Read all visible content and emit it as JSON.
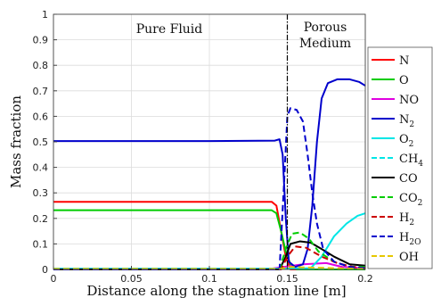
{
  "chart_data": {
    "type": "line",
    "xlabel": "Distance along the stagnation line [m]",
    "ylabel": "Mass fraction",
    "xlim": [
      0,
      0.2
    ],
    "ylim": [
      0,
      1
    ],
    "x_ticks": [
      "0",
      "0.05",
      "0.1",
      "0.15",
      "0.2"
    ],
    "y_ticks": [
      "0",
      "0.1",
      "0.2",
      "0.3",
      "0.4",
      "0.5",
      "0.6",
      "0.7",
      "0.8",
      "0.9",
      "1"
    ],
    "grid": true,
    "legend_position": "right",
    "divider_x": 0.15,
    "annotations": [
      {
        "text": "Pure Fluid",
        "region": "left"
      },
      {
        "text": "Porous",
        "region": "right"
      },
      {
        "text": "Medium",
        "region": "right"
      }
    ],
    "series": [
      {
        "name": "N",
        "sub": "",
        "color": "#ff0000",
        "dash": "solid",
        "points": [
          [
            0,
            0.265
          ],
          [
            0.1,
            0.265
          ],
          [
            0.14,
            0.265
          ],
          [
            0.143,
            0.25
          ],
          [
            0.146,
            0.15
          ],
          [
            0.149,
            0.05
          ],
          [
            0.152,
            0.0
          ],
          [
            0.2,
            0.0
          ]
        ]
      },
      {
        "name": "O",
        "sub": "",
        "color": "#00cc00",
        "dash": "solid",
        "points": [
          [
            0,
            0.232
          ],
          [
            0.1,
            0.232
          ],
          [
            0.14,
            0.232
          ],
          [
            0.143,
            0.22
          ],
          [
            0.146,
            0.15
          ],
          [
            0.149,
            0.07
          ],
          [
            0.152,
            0.02
          ],
          [
            0.156,
            0.0
          ],
          [
            0.2,
            0.0
          ]
        ]
      },
      {
        "name": "NO",
        "sub": "",
        "color": "#e000e0",
        "dash": "solid",
        "points": [
          [
            0,
            0.003
          ],
          [
            0.14,
            0.003
          ],
          [
            0.148,
            0.01
          ],
          [
            0.16,
            0.02
          ],
          [
            0.175,
            0.025
          ],
          [
            0.185,
            0.01
          ],
          [
            0.2,
            0.005
          ]
        ]
      },
      {
        "name": "N",
        "sub": "2",
        "color": "#0000cc",
        "dash": "solid",
        "points": [
          [
            0,
            0.503
          ],
          [
            0.1,
            0.503
          ],
          [
            0.142,
            0.505
          ],
          [
            0.145,
            0.51
          ],
          [
            0.147,
            0.45
          ],
          [
            0.149,
            0.2
          ],
          [
            0.151,
            0.03
          ],
          [
            0.155,
            0.01
          ],
          [
            0.16,
            0.02
          ],
          [
            0.163,
            0.08
          ],
          [
            0.166,
            0.25
          ],
          [
            0.169,
            0.5
          ],
          [
            0.172,
            0.67
          ],
          [
            0.176,
            0.73
          ],
          [
            0.182,
            0.745
          ],
          [
            0.19,
            0.745
          ],
          [
            0.196,
            0.735
          ],
          [
            0.2,
            0.72
          ]
        ]
      },
      {
        "name": "O",
        "sub": "2",
        "color": "#00e6e6",
        "dash": "solid",
        "points": [
          [
            0,
            0.003
          ],
          [
            0.14,
            0.003
          ],
          [
            0.15,
            0.003
          ],
          [
            0.165,
            0.005
          ],
          [
            0.172,
            0.05
          ],
          [
            0.18,
            0.13
          ],
          [
            0.188,
            0.18
          ],
          [
            0.195,
            0.21
          ],
          [
            0.2,
            0.22
          ]
        ]
      },
      {
        "name": "CH",
        "sub": "4",
        "color": "#00e6e6",
        "dash": "dashed",
        "points": [
          [
            0,
            0.003
          ],
          [
            0.15,
            0.003
          ],
          [
            0.2,
            0.002
          ]
        ]
      },
      {
        "name": "CO",
        "sub": "",
        "color": "#000000",
        "dash": "solid",
        "points": [
          [
            0,
            0.0
          ],
          [
            0.145,
            0.0
          ],
          [
            0.149,
            0.05
          ],
          [
            0.152,
            0.1
          ],
          [
            0.158,
            0.11
          ],
          [
            0.165,
            0.105
          ],
          [
            0.172,
            0.08
          ],
          [
            0.18,
            0.05
          ],
          [
            0.19,
            0.02
          ],
          [
            0.2,
            0.015
          ]
        ]
      },
      {
        "name": "CO",
        "sub": "2",
        "color": "#00cc00",
        "dash": "dashed",
        "points": [
          [
            0,
            0.0
          ],
          [
            0.145,
            0.0
          ],
          [
            0.149,
            0.08
          ],
          [
            0.153,
            0.14
          ],
          [
            0.158,
            0.145
          ],
          [
            0.164,
            0.12
          ],
          [
            0.17,
            0.07
          ],
          [
            0.18,
            0.03
          ],
          [
            0.19,
            0.01
          ],
          [
            0.2,
            0.01
          ]
        ]
      },
      {
        "name": "H",
        "sub": "2",
        "color": "#cc0000",
        "dash": "dashed",
        "points": [
          [
            0,
            0.0
          ],
          [
            0.146,
            0.0
          ],
          [
            0.15,
            0.05
          ],
          [
            0.155,
            0.09
          ],
          [
            0.162,
            0.085
          ],
          [
            0.172,
            0.05
          ],
          [
            0.182,
            0.025
          ],
          [
            0.192,
            0.01
          ],
          [
            0.2,
            0.005
          ]
        ]
      },
      {
        "name": "H",
        "sub": "2O",
        "color": "#0000cc",
        "dash": "dashed",
        "points": [
          [
            0,
            0.0
          ],
          [
            0.145,
            0.0
          ],
          [
            0.148,
            0.35
          ],
          [
            0.15,
            0.6
          ],
          [
            0.152,
            0.632
          ],
          [
            0.156,
            0.625
          ],
          [
            0.16,
            0.58
          ],
          [
            0.163,
            0.45
          ],
          [
            0.166,
            0.3
          ],
          [
            0.169,
            0.18
          ],
          [
            0.173,
            0.08
          ],
          [
            0.18,
            0.03
          ],
          [
            0.19,
            0.01
          ],
          [
            0.2,
            0.005
          ]
        ]
      },
      {
        "name": "OH",
        "sub": "",
        "color": "#e6c800",
        "dash": "dashed",
        "points": [
          [
            0,
            0.002
          ],
          [
            0.145,
            0.002
          ],
          [
            0.152,
            0.01
          ],
          [
            0.16,
            0.008
          ],
          [
            0.2,
            0.002
          ]
        ]
      }
    ]
  }
}
